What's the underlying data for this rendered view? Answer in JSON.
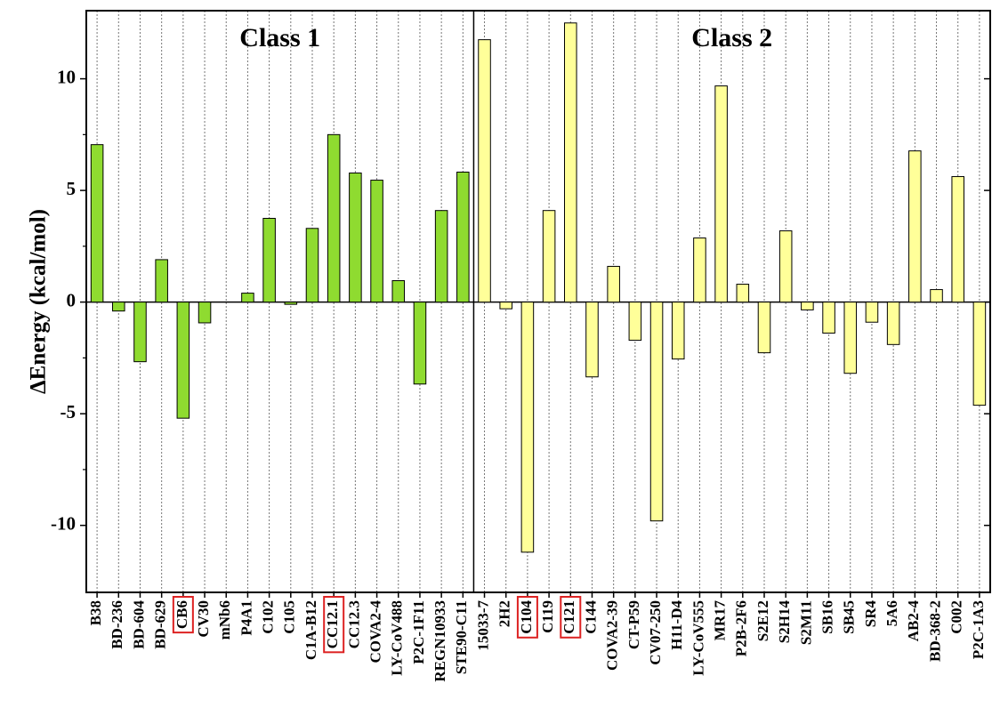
{
  "chart_data": {
    "type": "bar",
    "y_label": "ΔEnergy (kcal/mol)",
    "categories": [
      "B38",
      "BD-236",
      "BD-604",
      "BD-629",
      "CB6",
      "CV30",
      "mNb6",
      "P4A1",
      "C102",
      "C105",
      "C1A-B12",
      "CC12.1",
      "CC12.3",
      "COVA2-4",
      "LY-CoV488",
      "P2C-1F11",
      "REGN10933",
      "STE90-C11",
      "15033-7",
      "2H2",
      "C104",
      "C119",
      "C121",
      "C144",
      "COVA2-39",
      "CT-P59",
      "CV07-250",
      "H11-D4",
      "LY-CoV555",
      "MR17",
      "P2B-2F6",
      "S2E12",
      "S2H14",
      "S2M11",
      "SB16",
      "SB45",
      "SR4",
      "5A6",
      "AB2-4",
      "BD-368-2",
      "C002",
      "P2C-1A3"
    ],
    "series": [
      {
        "name": "Class 1",
        "color": "#8fdb30",
        "values": [
          7.05,
          -0.4,
          -2.67,
          1.9,
          -5.2,
          -0.93,
          0,
          0.4,
          3.75,
          -0.1,
          3.3,
          7.5,
          5.78,
          5.46,
          0.96,
          -3.67,
          4.1,
          5.82,
          null,
          null,
          null,
          null,
          null,
          null,
          null,
          null,
          null,
          null,
          null,
          null,
          null,
          null,
          null,
          null,
          null,
          null,
          null,
          null,
          null,
          null,
          null,
          null
        ]
      },
      {
        "name": "Class 2",
        "color": "#ffff99",
        "values": [
          null,
          null,
          null,
          null,
          null,
          null,
          null,
          null,
          null,
          null,
          null,
          null,
          null,
          null,
          null,
          null,
          null,
          null,
          11.75,
          -0.3,
          -11.2,
          4.1,
          12.5,
          -3.35,
          1.6,
          -1.71,
          -9.8,
          -2.55,
          2.87,
          9.68,
          0.8,
          -2.27,
          3.19,
          -0.35,
          -1.39,
          -3.19,
          -0.9,
          -1.9,
          6.77,
          0.56,
          5.62,
          -4.62
        ]
      }
    ],
    "highlighted": [
      4,
      11,
      20,
      22
    ],
    "ylim": [
      -13,
      13.05
    ],
    "yticks": [
      -10,
      -5,
      0,
      5,
      10
    ],
    "grid": true
  }
}
